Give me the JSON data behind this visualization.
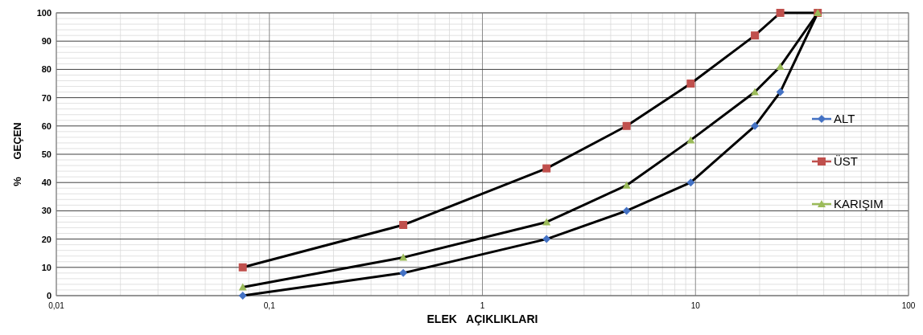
{
  "chart_data": {
    "type": "line",
    "xlabel": "ELEK   AÇIKLIKLARI",
    "ylabel": "%      GEÇEN",
    "log": "x",
    "grid": true,
    "legend": "right",
    "line_style": "solid",
    "xlim": [
      0.01,
      100
    ],
    "xticks": [
      {
        "value": 0.01,
        "label": "0,01"
      },
      {
        "value": 0.1,
        "label": "0,1"
      },
      1,
      10,
      100
    ],
    "ylim": [
      0,
      100
    ],
    "yticks": [
      0,
      10,
      20,
      30,
      40,
      50,
      60,
      70,
      80,
      90,
      100
    ],
    "x": [
      0.075,
      0.425,
      2,
      4.75,
      9.5,
      19,
      25,
      37.5
    ],
    "series": [
      {
        "name": "ALT",
        "color": "#4472c4",
        "marker": "diamond",
        "values": [
          0,
          8,
          20,
          30,
          40,
          60,
          72,
          100
        ]
      },
      {
        "name": "ÜST",
        "color": "#c0504d",
        "marker": "square",
        "values": [
          10,
          25,
          45,
          60,
          75,
          92,
          100,
          100
        ]
      },
      {
        "name": "KARIŞIM",
        "color": "#9bbb59",
        "marker": "triangle",
        "values": [
          3,
          13.5,
          26,
          39,
          55,
          72,
          81,
          100
        ]
      }
    ]
  }
}
